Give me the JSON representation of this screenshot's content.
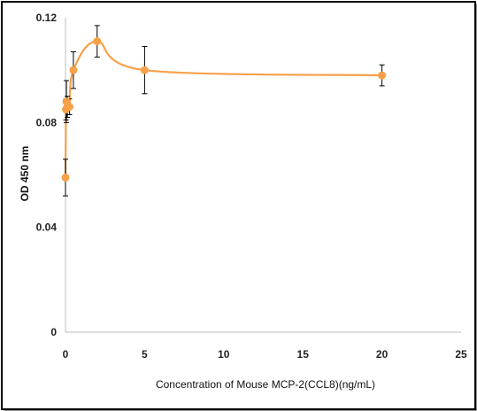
{
  "chart_data": {
    "type": "scatter",
    "xlabel": "Concentration of Mouse MCP-2(CCL8)(ng/mL)",
    "ylabel": "OD 450 nm",
    "xlim": [
      0,
      25
    ],
    "ylim": [
      0,
      0.12
    ],
    "x_ticks": [
      "0",
      "5",
      "10",
      "15",
      "20",
      "25"
    ],
    "y_ticks": [
      "0",
      "0.04",
      "0.08",
      "0.12"
    ],
    "series": [
      {
        "x": [
          0,
          0.03,
          0.06,
          0.12,
          0.25,
          0.5,
          2,
          5,
          20
        ],
        "y": [
          0.059,
          0.085,
          0.088,
          0.086,
          0.086,
          0.1,
          0.111,
          0.1,
          0.098
        ],
        "err": [
          0.007,
          0.004,
          0.008,
          0.004,
          0.003,
          0.007,
          0.006,
          0.009,
          0.004
        ],
        "color": "#F7A04A",
        "smooth_line": true,
        "error_bars": true
      }
    ]
  }
}
